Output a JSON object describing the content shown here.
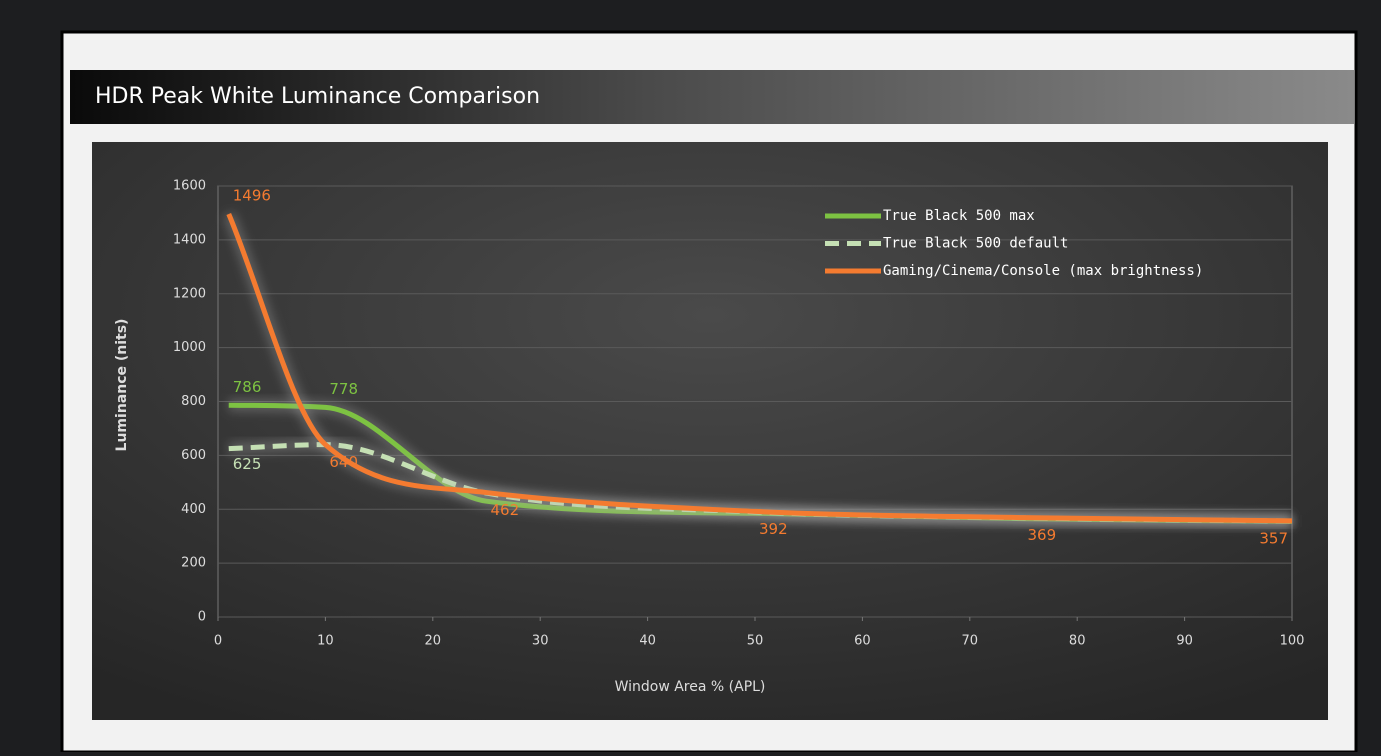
{
  "chart_data": {
    "type": "line",
    "title": "HDR Peak White Luminance Comparison",
    "x_label": "Window Area % (APL)",
    "y_label": "Luminance (nits)",
    "x": [
      1,
      10,
      25,
      50,
      75,
      100
    ],
    "series": [
      {
        "name": "True Black 500 max",
        "color": "#7dc242",
        "dash": false,
        "values": [
          786,
          778,
          430,
          385,
          365,
          355
        ],
        "show_labels": [
          true,
          true,
          false,
          false,
          false,
          false
        ]
      },
      {
        "name": "True Black 500 default",
        "color": "#c5e0b4",
        "dash": true,
        "values": [
          625,
          640,
          460,
          390,
          368,
          356
        ],
        "show_labels": [
          true,
          false,
          false,
          false,
          false,
          false
        ]
      },
      {
        "name": "Gaming/Cinema/Console (max brightness)",
        "color": "#f47b30",
        "dash": false,
        "values": [
          1496,
          640,
          462,
          392,
          369,
          357
        ],
        "show_labels": [
          true,
          true,
          true,
          true,
          true,
          true
        ]
      }
    ],
    "xlim": [
      0,
      100
    ],
    "xticks": [
      0,
      10,
      20,
      30,
      40,
      50,
      60,
      70,
      80,
      90,
      100
    ],
    "ylim": [
      0,
      1600
    ],
    "yticks": [
      0,
      200,
      400,
      600,
      800,
      1000,
      1200,
      1400,
      1600
    ],
    "grid": true,
    "legend": "top-right"
  }
}
